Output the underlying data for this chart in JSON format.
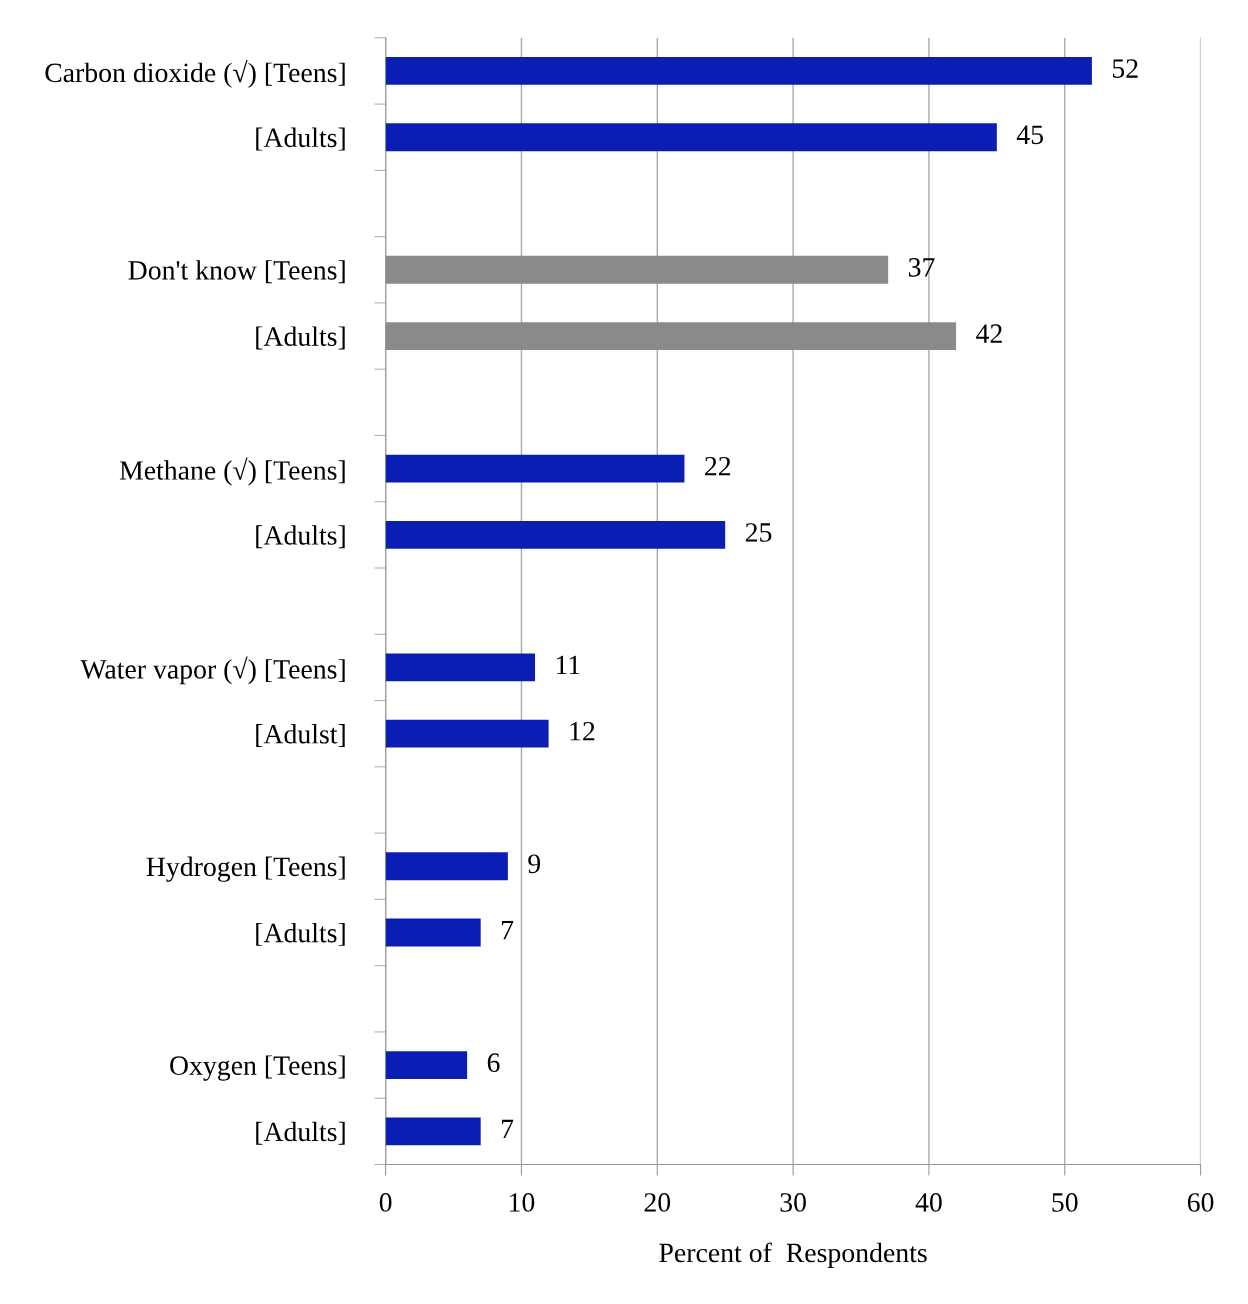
{
  "chart_data": {
    "type": "bar",
    "orientation": "horizontal",
    "xlabel": "Percent of  Respondents",
    "categories": [
      "Carbon dioxide (√) [Teens]",
      "[Adults]",
      null,
      "Don't know [Teens]",
      "[Adults]",
      null,
      "Methane (√) [Teens]",
      "[Adults]",
      null,
      "Water vapor (√) [Teens]",
      "[Adulst]",
      null,
      "Hydrogen [Teens]",
      "[Adults]",
      null,
      "Oxygen [Teens]",
      "[Adults]"
    ],
    "values": [
      52,
      45,
      null,
      37,
      42,
      null,
      22,
      25,
      null,
      11,
      12,
      null,
      9,
      7,
      null,
      6,
      7
    ],
    "colors": [
      "#0a1eb4",
      "#0a1eb4",
      null,
      "#8a8a8a",
      "#8a8a8a",
      null,
      "#0a1eb4",
      "#0a1eb4",
      null,
      "#0a1eb4",
      "#0a1eb4",
      null,
      "#0a1eb4",
      "#0a1eb4",
      null,
      "#0a1eb4",
      "#0a1eb4"
    ],
    "xlim": [
      0,
      60
    ],
    "xticks": [
      0,
      10,
      20,
      30,
      40,
      50,
      60
    ],
    "grid": "x",
    "data_labels": true
  }
}
